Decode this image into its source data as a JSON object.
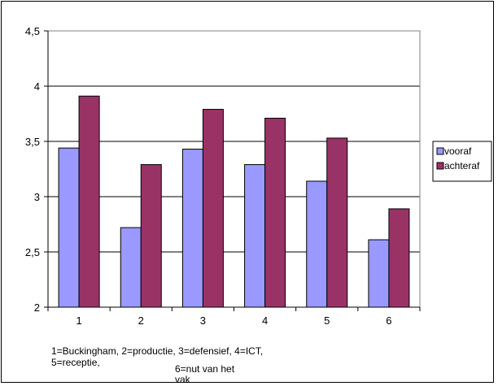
{
  "chart_data": {
    "type": "bar",
    "title": "",
    "xlabel": "",
    "ylabel": "",
    "categories": [
      "1",
      "2",
      "3",
      "4",
      "5",
      "6"
    ],
    "series": [
      {
        "name": "vooraf",
        "values": [
          3.44,
          2.72,
          3.43,
          3.29,
          3.14,
          2.61
        ],
        "color": "#9999ff"
      },
      {
        "name": "achteraf",
        "values": [
          3.91,
          3.29,
          3.79,
          3.71,
          3.53,
          2.89
        ],
        "color": "#993366"
      }
    ],
    "ylim": [
      2,
      4.5
    ],
    "yticks": [
      "2",
      "2,5",
      "3",
      "3,5",
      "4",
      "4,5"
    ],
    "grid": true,
    "legend_position": "right",
    "caption_lines": [
      "1=Buckingham, 2=productie, 3=defensief, 4=ICT,",
      "5=receptie,",
      "6=nut van het",
      "vak"
    ]
  }
}
